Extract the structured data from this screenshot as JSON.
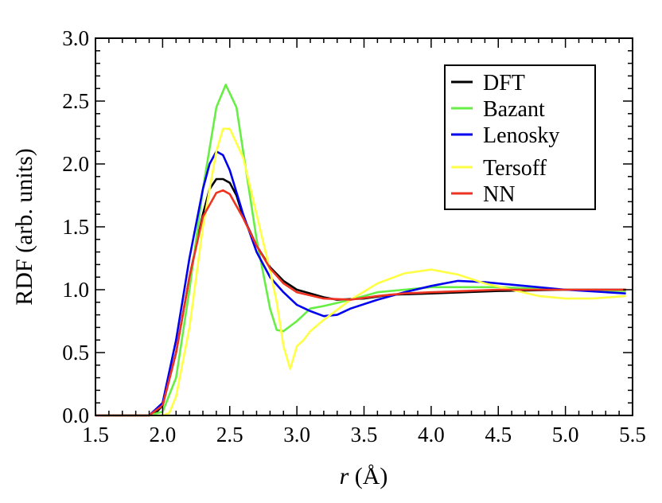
{
  "chart_data": {
    "type": "line",
    "title": "",
    "xlabel_italic": "r",
    "xlabel_rest": " (Å)",
    "ylabel": "RDF (arb. units)",
    "xlim": [
      1.5,
      5.5
    ],
    "ylim": [
      0.0,
      3.0
    ],
    "xticks": [
      "1.5",
      "2.0",
      "2.5",
      "3.0",
      "3.5",
      "4.0",
      "4.5",
      "5.0",
      "5.5"
    ],
    "yticks": [
      "0.0",
      "0.5",
      "1.0",
      "1.5",
      "2.0",
      "2.5",
      "3.0"
    ],
    "grid": false,
    "legend_placement": "top-right",
    "series": [
      {
        "name": "DFT",
        "color": "#000000",
        "x": [
          1.5,
          1.9,
          1.95,
          2.0,
          2.1,
          2.2,
          2.3,
          2.35,
          2.4,
          2.45,
          2.5,
          2.55,
          2.6,
          2.7,
          2.8,
          2.9,
          3.0,
          3.1,
          3.2,
          3.3,
          3.5,
          3.7,
          4.0,
          4.5,
          5.0,
          5.45
        ],
        "y": [
          0,
          0,
          0.02,
          0.08,
          0.5,
          1.1,
          1.6,
          1.8,
          1.88,
          1.88,
          1.85,
          1.75,
          1.58,
          1.35,
          1.18,
          1.07,
          1.0,
          0.97,
          0.94,
          0.92,
          0.93,
          0.96,
          0.97,
          0.99,
          1.0,
          1.0
        ]
      },
      {
        "name": "Bazant",
        "color": "#66ee44",
        "x": [
          1.5,
          1.9,
          2.0,
          2.1,
          2.2,
          2.3,
          2.4,
          2.47,
          2.55,
          2.6,
          2.7,
          2.8,
          2.85,
          2.9,
          3.0,
          3.1,
          3.2,
          3.4,
          3.6,
          3.8,
          4.0,
          4.5,
          5.0,
          5.45
        ],
        "y": [
          0,
          0,
          0.03,
          0.3,
          1.0,
          1.8,
          2.45,
          2.63,
          2.45,
          2.1,
          1.4,
          0.85,
          0.68,
          0.67,
          0.75,
          0.85,
          0.87,
          0.92,
          0.98,
          1.0,
          1.02,
          1.02,
          1.0,
          0.99
        ]
      },
      {
        "name": "Lenosky",
        "color": "#0000ee",
        "x": [
          1.5,
          1.9,
          2.0,
          2.1,
          2.2,
          2.3,
          2.35,
          2.4,
          2.45,
          2.5,
          2.6,
          2.7,
          2.8,
          2.9,
          3.0,
          3.1,
          3.2,
          3.3,
          3.4,
          3.6,
          3.8,
          4.0,
          4.2,
          4.4,
          4.6,
          5.0,
          5.45
        ],
        "y": [
          0,
          0,
          0.1,
          0.6,
          1.25,
          1.8,
          2.0,
          2.1,
          2.07,
          1.95,
          1.6,
          1.3,
          1.1,
          0.98,
          0.88,
          0.83,
          0.79,
          0.8,
          0.85,
          0.92,
          0.98,
          1.03,
          1.07,
          1.06,
          1.04,
          1.0,
          0.97
        ]
      },
      {
        "name": "Tersoff",
        "color": "#ffff44",
        "x": [
          1.5,
          2.0,
          2.05,
          2.1,
          2.2,
          2.3,
          2.4,
          2.45,
          2.5,
          2.6,
          2.7,
          2.8,
          2.85,
          2.9,
          2.95,
          3.0,
          3.05,
          3.1,
          3.2,
          3.3,
          3.4,
          3.6,
          3.8,
          4.0,
          4.2,
          4.4,
          4.6,
          4.8,
          5.0,
          5.2,
          5.45
        ],
        "y": [
          0,
          0,
          0.02,
          0.15,
          0.7,
          1.5,
          2.1,
          2.28,
          2.28,
          2.05,
          1.6,
          1.15,
          0.9,
          0.55,
          0.37,
          0.55,
          0.6,
          0.67,
          0.76,
          0.84,
          0.92,
          1.05,
          1.13,
          1.16,
          1.12,
          1.05,
          1.0,
          0.95,
          0.93,
          0.93,
          0.95
        ]
      },
      {
        "name": "NN",
        "color": "#ee3322",
        "x": [
          1.5,
          1.9,
          2.0,
          2.1,
          2.2,
          2.3,
          2.4,
          2.45,
          2.5,
          2.6,
          2.7,
          2.8,
          2.9,
          3.0,
          3.2,
          3.4,
          3.6,
          3.8,
          4.0,
          4.5,
          5.0,
          5.45
        ],
        "y": [
          0,
          0,
          0.08,
          0.5,
          1.1,
          1.58,
          1.77,
          1.79,
          1.76,
          1.57,
          1.35,
          1.17,
          1.05,
          0.98,
          0.93,
          0.92,
          0.95,
          0.97,
          0.98,
          1.0,
          1.0,
          1.0
        ]
      }
    ]
  }
}
